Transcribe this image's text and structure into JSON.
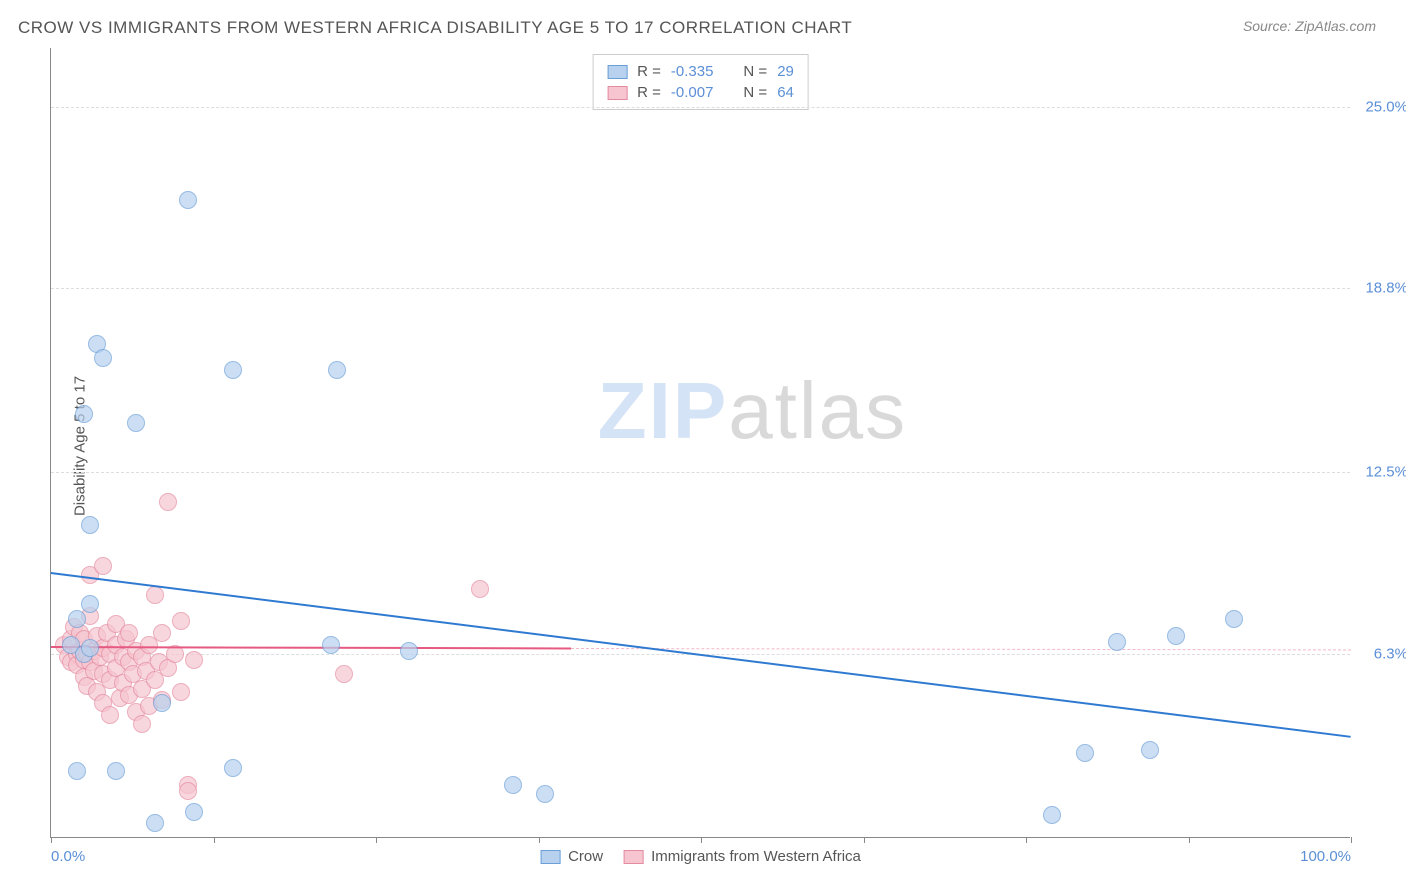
{
  "header": {
    "title": "CROW VS IMMIGRANTS FROM WESTERN AFRICA DISABILITY AGE 5 TO 17 CORRELATION CHART",
    "source_prefix": "Source: ",
    "source": "ZipAtlas.com"
  },
  "watermark": {
    "part1": "ZIP",
    "part2": "atlas"
  },
  "chart": {
    "type": "scatter",
    "ylabel": "Disability Age 5 to 17",
    "xlim": [
      0,
      100
    ],
    "ylim": [
      0,
      27
    ],
    "background_color": "#ffffff",
    "grid_color": "#dddddd",
    "axis_color": "#888888",
    "tick_label_color": "#5b8fd6",
    "y_gridlines": [
      6.3,
      12.5,
      18.8,
      25.0
    ],
    "y_tick_labels": [
      "6.3%",
      "12.5%",
      "18.8%",
      "25.0%"
    ],
    "x_ticks": [
      0,
      12.5,
      25,
      37.5,
      50,
      62.5,
      75,
      87.5,
      100
    ],
    "x_min_label": "0.0%",
    "x_max_label": "100.0%",
    "marker_radius": 9,
    "series": [
      {
        "name": "Crow",
        "fill_color": "#b7d1ee",
        "stroke_color": "#6a9fd8",
        "fill_opacity": 0.7,
        "R": "-0.335",
        "N": "29",
        "trend": {
          "x1": 0,
          "y1": 9.1,
          "x2": 100,
          "y2": 3.5,
          "color": "#2f7ad1",
          "width": 2.5,
          "dash": "solid"
        },
        "points": [
          [
            1.5,
            6.6
          ],
          [
            2.0,
            7.5
          ],
          [
            2.5,
            6.3
          ],
          [
            3.0,
            6.5
          ],
          [
            3.0,
            8.0
          ],
          [
            3.5,
            16.9
          ],
          [
            4.0,
            16.4
          ],
          [
            3.0,
            10.7
          ],
          [
            2.5,
            14.5
          ],
          [
            2.0,
            2.3
          ],
          [
            5.0,
            2.3
          ],
          [
            6.5,
            14.2
          ],
          [
            8.0,
            0.5
          ],
          [
            8.5,
            4.6
          ],
          [
            10.5,
            21.8
          ],
          [
            11.0,
            0.9
          ],
          [
            14.0,
            2.4
          ],
          [
            14.0,
            16.0
          ],
          [
            22.0,
            16.0
          ],
          [
            21.5,
            6.6
          ],
          [
            27.5,
            6.4
          ],
          [
            35.5,
            1.8
          ],
          [
            38.0,
            1.5
          ],
          [
            77.0,
            0.8
          ],
          [
            79.5,
            2.9
          ],
          [
            82.0,
            6.7
          ],
          [
            84.5,
            3.0
          ],
          [
            86.5,
            6.9
          ],
          [
            91.0,
            7.5
          ]
        ]
      },
      {
        "name": "Immigrants from Western Africa",
        "fill_color": "#f6c5cf",
        "stroke_color": "#e48ba0",
        "fill_opacity": 0.7,
        "R": "-0.007",
        "N": "64",
        "trend_solid": {
          "x1": 0,
          "y1": 6.55,
          "x2": 40,
          "y2": 6.5,
          "color": "#e65a82",
          "width": 2,
          "dash": "solid"
        },
        "trend_dash": {
          "x1": 40,
          "y1": 6.5,
          "x2": 100,
          "y2": 6.45,
          "color": "#f3b7c5",
          "width": 1.5,
          "dash": "dashed"
        },
        "points": [
          [
            1.0,
            6.6
          ],
          [
            1.3,
            6.2
          ],
          [
            1.5,
            6.8
          ],
          [
            1.5,
            6.0
          ],
          [
            1.8,
            7.2
          ],
          [
            2.0,
            6.3
          ],
          [
            2.0,
            5.9
          ],
          [
            2.2,
            7.0
          ],
          [
            2.2,
            6.4
          ],
          [
            2.5,
            5.5
          ],
          [
            2.5,
            6.1
          ],
          [
            2.5,
            6.8
          ],
          [
            2.8,
            6.3
          ],
          [
            2.8,
            5.2
          ],
          [
            3.0,
            7.6
          ],
          [
            3.0,
            6.0
          ],
          [
            3.0,
            9.0
          ],
          [
            3.3,
            6.4
          ],
          [
            3.3,
            5.7
          ],
          [
            3.5,
            6.9
          ],
          [
            3.5,
            5.0
          ],
          [
            3.8,
            6.2
          ],
          [
            4.0,
            9.3
          ],
          [
            4.0,
            6.5
          ],
          [
            4.0,
            5.6
          ],
          [
            4.0,
            4.6
          ],
          [
            4.3,
            7.0
          ],
          [
            4.5,
            6.3
          ],
          [
            4.5,
            5.4
          ],
          [
            4.5,
            4.2
          ],
          [
            5.0,
            6.6
          ],
          [
            5.0,
            5.8
          ],
          [
            5.0,
            7.3
          ],
          [
            5.3,
            4.8
          ],
          [
            5.5,
            6.2
          ],
          [
            5.5,
            5.3
          ],
          [
            5.8,
            6.8
          ],
          [
            6.0,
            4.9
          ],
          [
            6.0,
            6.0
          ],
          [
            6.0,
            7.0
          ],
          [
            6.3,
            5.6
          ],
          [
            6.5,
            4.3
          ],
          [
            6.5,
            6.4
          ],
          [
            7.0,
            5.1
          ],
          [
            7.0,
            6.2
          ],
          [
            7.0,
            3.9
          ],
          [
            7.3,
            5.7
          ],
          [
            7.5,
            6.6
          ],
          [
            7.5,
            4.5
          ],
          [
            8.0,
            8.3
          ],
          [
            8.0,
            5.4
          ],
          [
            8.3,
            6.0
          ],
          [
            8.5,
            7.0
          ],
          [
            8.5,
            4.7
          ],
          [
            9.0,
            5.8
          ],
          [
            9.0,
            11.5
          ],
          [
            9.5,
            6.3
          ],
          [
            10.0,
            5.0
          ],
          [
            10.0,
            7.4
          ],
          [
            10.5,
            1.8
          ],
          [
            10.5,
            1.6
          ],
          [
            11.0,
            6.1
          ],
          [
            22.5,
            5.6
          ],
          [
            33.0,
            8.5
          ]
        ]
      }
    ],
    "legend_top": {
      "R_label": "R =",
      "N_label": "N ="
    },
    "legend_bottom": {
      "label1": "Crow",
      "label2": "Immigrants from Western Africa"
    }
  }
}
